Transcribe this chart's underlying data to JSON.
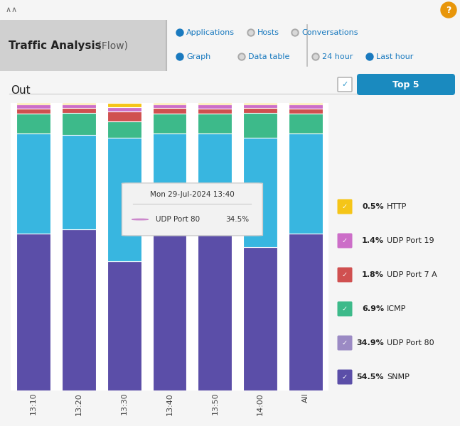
{
  "title_bold": "Traffic Analysis",
  "title_light": " (Flow)",
  "section_label": "Out",
  "categories": [
    "13:10",
    "13:20",
    "13:30",
    "13:40",
    "13:50",
    "14:00",
    "All"
  ],
  "series": [
    {
      "name": "SNMP",
      "color": "#5b4ea8",
      "values": [
        54.5,
        56.0,
        45.0,
        55.0,
        54.5,
        50.0,
        54.5
      ]
    },
    {
      "name": "UDP Port 80",
      "color": "#38b6e0",
      "values": [
        34.9,
        33.0,
        43.0,
        34.5,
        34.9,
        38.0,
        34.9
      ]
    },
    {
      "name": "ICMP",
      "color": "#3dba8a",
      "values": [
        6.9,
        7.5,
        5.5,
        6.9,
        6.9,
        8.5,
        6.9
      ]
    },
    {
      "name": "UDP Port 7 A",
      "color": "#d05050",
      "values": [
        1.8,
        1.8,
        3.5,
        1.8,
        1.8,
        1.8,
        1.8
      ]
    },
    {
      "name": "UDP Port 19",
      "color": "#cc6ec8",
      "values": [
        1.4,
        1.2,
        1.5,
        1.3,
        1.4,
        1.2,
        1.4
      ]
    },
    {
      "name": "HTTP",
      "color": "#f5c518",
      "values": [
        0.5,
        0.5,
        1.5,
        0.5,
        0.5,
        0.5,
        0.5
      ]
    }
  ],
  "legend_items": [
    {
      "color": "#f5c518",
      "pct": "0.5%",
      "label": "HTTP"
    },
    {
      "color": "#cc6ec8",
      "pct": "1.4%",
      "label": "UDP Port 19"
    },
    {
      "color": "#d05050",
      "pct": "1.8%",
      "label": "UDP Port 7 A"
    },
    {
      "color": "#3dba8a",
      "pct": "6.9%",
      "label": "ICMP"
    },
    {
      "color": "#9b8ac4",
      "pct": "34.9%",
      "label": "UDP Port 80"
    },
    {
      "color": "#5b4ea8",
      "pct": "54.5%",
      "label": "SNMP"
    }
  ],
  "tooltip": {
    "title": "Mon 29-Jul-2024 13:40",
    "item": "UDP Port 80",
    "value": "34.5%",
    "dot_color": "#cc88cc",
    "bar_index": 3
  },
  "top_bar_color": "#c8c8c8",
  "header_color": "#d8d8d8",
  "content_color": "#f5f5f5",
  "right_panel_color": "#e0e0e0",
  "chart_bg": "#ffffff"
}
